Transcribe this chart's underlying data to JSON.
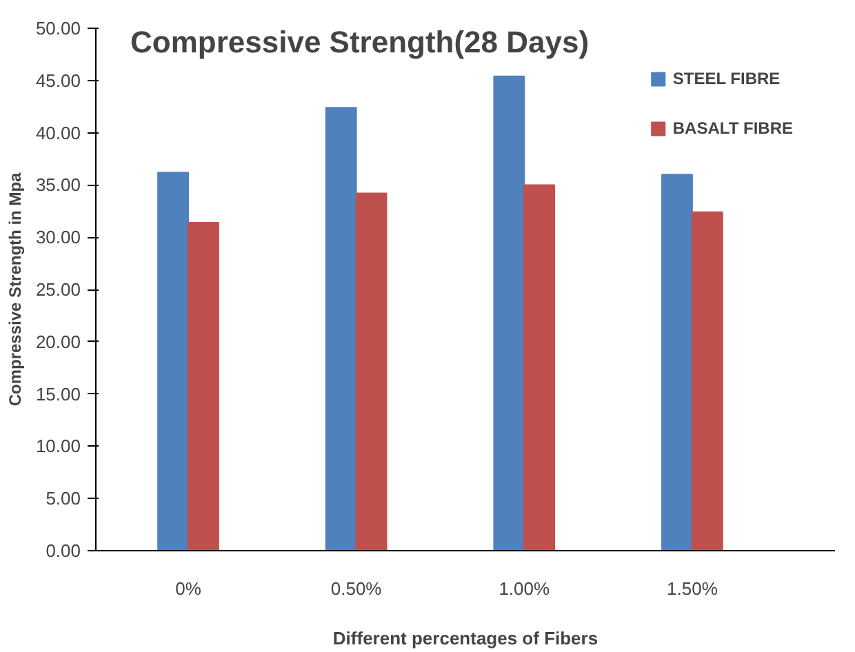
{
  "chart_data": {
    "type": "bar",
    "title": "Compressive Strength(28 Days)",
    "xlabel": "Different percentages of Fibers",
    "ylabel": "Compressive Strength in Mpa",
    "categories": [
      "0%",
      "0.50%",
      "1.00%",
      "1.50%"
    ],
    "series": [
      {
        "name": "STEEL FIBRE",
        "color": "#4f81bd",
        "values": [
          36.2,
          42.4,
          45.4,
          36.0
        ]
      },
      {
        "name": "BASALT FIBRE",
        "color": "#c0504d",
        "values": [
          31.4,
          34.2,
          35.0,
          32.4
        ]
      }
    ],
    "ylim": [
      0,
      50
    ],
    "yticks": [
      {
        "value": 0,
        "label": "0.00"
      },
      {
        "value": 5,
        "label": "5.00"
      },
      {
        "value": 10,
        "label": "10.00"
      },
      {
        "value": 15,
        "label": "15.00"
      },
      {
        "value": 20,
        "label": "20.00"
      },
      {
        "value": 25,
        "label": "25.00"
      },
      {
        "value": 30,
        "label": "30.00"
      },
      {
        "value": 35,
        "label": "35.00"
      },
      {
        "value": 40,
        "label": "40.00"
      },
      {
        "value": 45,
        "label": "45.00"
      },
      {
        "value": 50,
        "label": "50.00"
      }
    ],
    "grid": false,
    "legend": "top right"
  }
}
